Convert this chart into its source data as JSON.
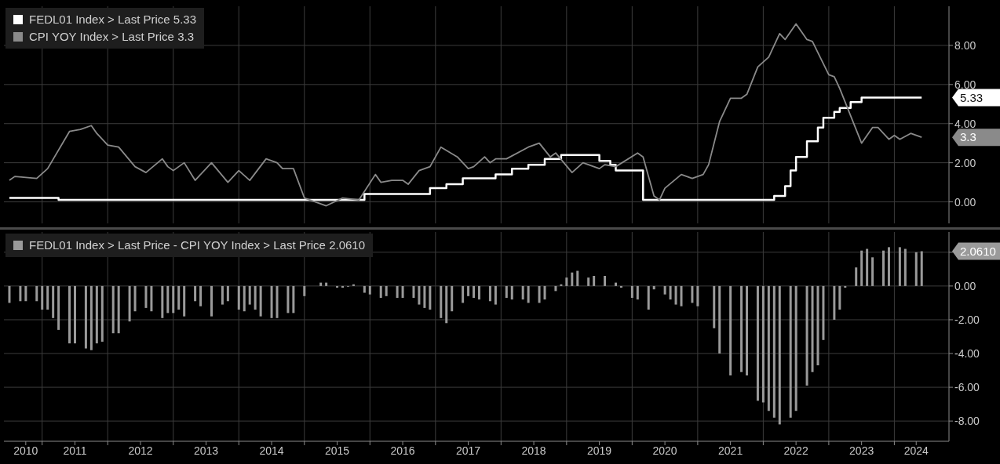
{
  "chart_data": [
    {
      "type": "line",
      "legend": "top left",
      "grid": true,
      "tick_labels": "y",
      "xlim": [
        "2010-06",
        "2024-11"
      ],
      "xticks": [
        {
          "value": "2011-01",
          "label": null
        },
        {
          "value": "2012-01",
          "label": null
        },
        {
          "value": "2013-01",
          "label": null
        },
        {
          "value": "2014-01",
          "label": null
        },
        {
          "value": "2015-01",
          "label": null
        },
        {
          "value": "2016-01",
          "label": null
        },
        {
          "value": "2017-01",
          "label": null
        },
        {
          "value": "2018-01",
          "label": null
        },
        {
          "value": "2019-01",
          "label": null
        },
        {
          "value": "2020-01",
          "label": null
        },
        {
          "value": "2021-01",
          "label": null
        },
        {
          "value": "2022-01",
          "label": null
        },
        {
          "value": "2023-01",
          "label": null
        },
        {
          "value": "2024-01",
          "label": null
        }
      ],
      "ylim": [
        -1.1,
        10
      ],
      "yticks": [
        {
          "value": 0,
          "label": "0.00"
        },
        {
          "value": 2,
          "label": "2.00"
        },
        {
          "value": 4,
          "label": "4.00"
        },
        {
          "value": 6,
          "label": "6.00"
        },
        {
          "value": 8,
          "label": "8.00"
        }
      ],
      "annotations": [
        "5.33",
        "3.3"
      ],
      "series": [
        {
          "name": "FEDL01 Index > Last Price 5.33",
          "type": "step",
          "color": "#ffffff",
          "x": [
            "2010-07",
            "2011-04",
            "2015-12",
            "2016-12",
            "2017-03",
            "2017-06",
            "2017-12",
            "2018-03",
            "2018-06",
            "2018-09",
            "2018-12",
            "2019-07",
            "2019-09",
            "2019-10",
            "2020-03",
            "2022-03",
            "2022-05",
            "2022-06",
            "2022-07",
            "2022-09",
            "2022-11",
            "2022-12",
            "2023-02",
            "2023-03",
            "2023-05",
            "2023-07",
            "2024-06"
          ],
          "values": [
            0.2,
            0.1,
            0.4,
            0.7,
            0.9,
            1.2,
            1.4,
            1.7,
            1.9,
            2.2,
            2.4,
            2.1,
            1.9,
            1.6,
            0.1,
            0.3,
            0.8,
            1.6,
            2.3,
            3.1,
            3.8,
            4.3,
            4.6,
            4.8,
            5.1,
            5.33,
            5.33
          ]
        },
        {
          "name": "CPI YOY Index > Last Price 3.3",
          "color": "#8a8a8a",
          "x": [
            "2010-07",
            "2010-08",
            "2010-12",
            "2011-02",
            "2011-06",
            "2011-08",
            "2011-10",
            "2011-11",
            "2012-01",
            "2012-03",
            "2012-06",
            "2012-08",
            "2012-11",
            "2012-12",
            "2013-01",
            "2013-03",
            "2013-05",
            "2013-08",
            "2013-11",
            "2014-01",
            "2014-03",
            "2014-06",
            "2014-08",
            "2014-09",
            "2014-11",
            "2015-01",
            "2015-05",
            "2015-08",
            "2015-11",
            "2016-02",
            "2016-03",
            "2016-05",
            "2016-07",
            "2016-08",
            "2016-10",
            "2016-12",
            "2017-02",
            "2017-05",
            "2017-07",
            "2017-08",
            "2017-10",
            "2017-11",
            "2017-12",
            "2018-02",
            "2018-06",
            "2018-08",
            "2018-10",
            "2018-11",
            "2019-02",
            "2019-04",
            "2019-07",
            "2019-08",
            "2019-10",
            "2020-02",
            "2020-03",
            "2020-05",
            "2020-06",
            "2020-07",
            "2020-10",
            "2020-12",
            "2021-02",
            "2021-03",
            "2021-05",
            "2021-07",
            "2021-09",
            "2021-10",
            "2021-12",
            "2022-02",
            "2022-04",
            "2022-05",
            "2022-07",
            "2022-09",
            "2022-10",
            "2023-01",
            "2023-02",
            "2023-03",
            "2023-07",
            "2023-09",
            "2023-10",
            "2023-12",
            "2024-01",
            "2024-02",
            "2024-04",
            "2024-06"
          ],
          "values": [
            1.1,
            1.3,
            1.2,
            1.7,
            3.6,
            3.7,
            3.9,
            3.5,
            2.9,
            2.8,
            1.8,
            1.5,
            2.2,
            1.8,
            1.6,
            2.0,
            1.1,
            2.0,
            1.0,
            1.6,
            1.1,
            2.2,
            2.0,
            1.7,
            1.7,
            0.2,
            -0.2,
            0.2,
            0.1,
            1.4,
            1.0,
            1.1,
            1.1,
            0.9,
            1.6,
            1.8,
            2.8,
            2.3,
            1.7,
            1.8,
            2.3,
            2.0,
            2.2,
            2.2,
            2.8,
            3.0,
            2.3,
            2.5,
            1.5,
            2.0,
            1.7,
            1.9,
            1.8,
            2.5,
            2.3,
            0.3,
            0.1,
            0.7,
            1.4,
            1.2,
            1.4,
            1.9,
            4.1,
            5.3,
            5.3,
            5.5,
            6.9,
            7.4,
            8.6,
            8.3,
            9.1,
            8.3,
            8.2,
            6.5,
            6.4,
            5.8,
            3.0,
            3.8,
            3.8,
            3.2,
            3.4,
            3.2,
            3.5,
            3.3
          ]
        }
      ]
    },
    {
      "type": "bar",
      "legend": "top left",
      "grid": true,
      "xlim": [
        "2010-06",
        "2024-11"
      ],
      "xticks": [
        {
          "value": "2010-10",
          "label": "2010"
        },
        {
          "value": "2011-01",
          "label": null
        },
        {
          "value": "2011-07",
          "label": "2011"
        },
        {
          "value": "2012-01",
          "label": null
        },
        {
          "value": "2012-07",
          "label": "2012"
        },
        {
          "value": "2013-01",
          "label": null
        },
        {
          "value": "2013-07",
          "label": "2013"
        },
        {
          "value": "2014-01",
          "label": null
        },
        {
          "value": "2014-07",
          "label": "2014"
        },
        {
          "value": "2015-01",
          "label": null
        },
        {
          "value": "2015-07",
          "label": "2015"
        },
        {
          "value": "2016-01",
          "label": null
        },
        {
          "value": "2016-07",
          "label": "2016"
        },
        {
          "value": "2017-01",
          "label": null
        },
        {
          "value": "2017-07",
          "label": "2017"
        },
        {
          "value": "2018-01",
          "label": null
        },
        {
          "value": "2018-07",
          "label": "2018"
        },
        {
          "value": "2019-01",
          "label": null
        },
        {
          "value": "2019-07",
          "label": "2019"
        },
        {
          "value": "2020-01",
          "label": null
        },
        {
          "value": "2020-07",
          "label": "2020"
        },
        {
          "value": "2021-01",
          "label": null
        },
        {
          "value": "2021-07",
          "label": "2021"
        },
        {
          "value": "2022-01",
          "label": null
        },
        {
          "value": "2022-07",
          "label": "2022"
        },
        {
          "value": "2023-01",
          "label": null
        },
        {
          "value": "2023-07",
          "label": "2023"
        },
        {
          "value": "2024-01",
          "label": null
        },
        {
          "value": "2024-05",
          "label": "2024"
        }
      ],
      "ylim": [
        -9.2,
        3.2
      ],
      "yticks": [
        {
          "value": 2,
          "label": null
        },
        {
          "value": 0,
          "label": "0.00"
        },
        {
          "value": -2,
          "label": "-2.00"
        },
        {
          "value": -4,
          "label": "-4.00"
        },
        {
          "value": -6,
          "label": "-6.00"
        },
        {
          "value": -8,
          "label": "-8.00"
        }
      ],
      "annotations": [
        "2.0610"
      ],
      "series": [
        {
          "name": "FEDL01 Index > Last Price - CPI YOY Index > Last Price 2.0610",
          "color": "#9a9a9a",
          "x": [
            "2010-07",
            "2010-09",
            "2010-10",
            "2010-12",
            "2011-01",
            "2011-02",
            "2011-03",
            "2011-04",
            "2011-06",
            "2011-07",
            "2011-09",
            "2011-10",
            "2011-11",
            "2011-12",
            "2012-02",
            "2012-03",
            "2012-05",
            "2012-06",
            "2012-08",
            "2012-09",
            "2012-11",
            "2012-12",
            "2013-01",
            "2013-02",
            "2013-03",
            "2013-05",
            "2013-06",
            "2013-08",
            "2013-10",
            "2013-11",
            "2014-01",
            "2014-02",
            "2014-03",
            "2014-04",
            "2014-05",
            "2014-07",
            "2014-08",
            "2014-10",
            "2014-11",
            "2015-01",
            "2015-04",
            "2015-05",
            "2015-07",
            "2015-08",
            "2015-09",
            "2015-10",
            "2015-12",
            "2016-01",
            "2016-03",
            "2016-04",
            "2016-06",
            "2016-07",
            "2016-09",
            "2016-10",
            "2016-11",
            "2016-12",
            "2017-02",
            "2017-03",
            "2017-04",
            "2017-06",
            "2017-07",
            "2017-08",
            "2017-09",
            "2017-11",
            "2017-12",
            "2018-02",
            "2018-03",
            "2018-05",
            "2018-06",
            "2018-08",
            "2018-09",
            "2018-11",
            "2018-12",
            "2019-01",
            "2019-02",
            "2019-03",
            "2019-05",
            "2019-06",
            "2019-08",
            "2019-10",
            "2019-11",
            "2020-01",
            "2020-02",
            "2020-04",
            "2020-05",
            "2020-07",
            "2020-08",
            "2020-09",
            "2020-10",
            "2020-12",
            "2021-01",
            "2021-04",
            "2021-05",
            "2021-07",
            "2021-09",
            "2021-10",
            "2021-12",
            "2022-01",
            "2022-02",
            "2022-03",
            "2022-04",
            "2022-06",
            "2022-07",
            "2022-09",
            "2022-10",
            "2022-11",
            "2022-12",
            "2023-02",
            "2023-03",
            "2023-04",
            "2023-06",
            "2023-07",
            "2023-08",
            "2023-09",
            "2023-11",
            "2023-12",
            "2024-02",
            "2024-03",
            "2024-05",
            "2024-06"
          ],
          "values": [
            -1.0,
            -0.9,
            -0.9,
            -0.9,
            -1.4,
            -1.4,
            -1.9,
            -2.6,
            -3.4,
            -3.4,
            -3.7,
            -3.8,
            -3.4,
            -3.3,
            -2.8,
            -2.8,
            -2.1,
            -1.5,
            -1.3,
            -1.5,
            -1.9,
            -1.6,
            -1.6,
            -1.4,
            -1.8,
            -0.9,
            -1.2,
            -1.8,
            -1.1,
            -0.9,
            -1.4,
            -1.5,
            -1.1,
            -1.4,
            -1.8,
            -1.9,
            -1.9,
            -1.6,
            -1.6,
            -0.6,
            0.2,
            0.2,
            -0.1,
            -0.1,
            -0.04,
            0.1,
            -0.4,
            -0.5,
            -0.7,
            -0.6,
            -0.7,
            -0.7,
            -0.7,
            -1.1,
            -1.3,
            -1.4,
            -1.9,
            -2.2,
            -1.5,
            -1.0,
            -0.6,
            -0.7,
            -0.8,
            -0.9,
            -1.1,
            -0.7,
            -0.8,
            -0.8,
            -1.0,
            -1.0,
            -0.8,
            -0.3,
            0.1,
            0.5,
            0.8,
            0.9,
            0.5,
            0.6,
            0.6,
            0.2,
            -0.1,
            -0.7,
            -0.8,
            -1.4,
            -0.2,
            -0.5,
            -0.8,
            -1.1,
            -1.2,
            -1.0,
            -1.2,
            -2.5,
            -4.0,
            -5.3,
            -5.1,
            -5.3,
            -6.8,
            -6.9,
            -7.4,
            -7.8,
            -8.2,
            -7.8,
            -7.4,
            -5.9,
            -5.1,
            -4.7,
            -3.2,
            -2.0,
            -1.4,
            -0.1,
            1.1,
            2.1,
            2.2,
            1.7,
            2.1,
            2.3,
            2.3,
            2.2,
            2.0,
            2.061
          ]
        }
      ]
    }
  ]
}
